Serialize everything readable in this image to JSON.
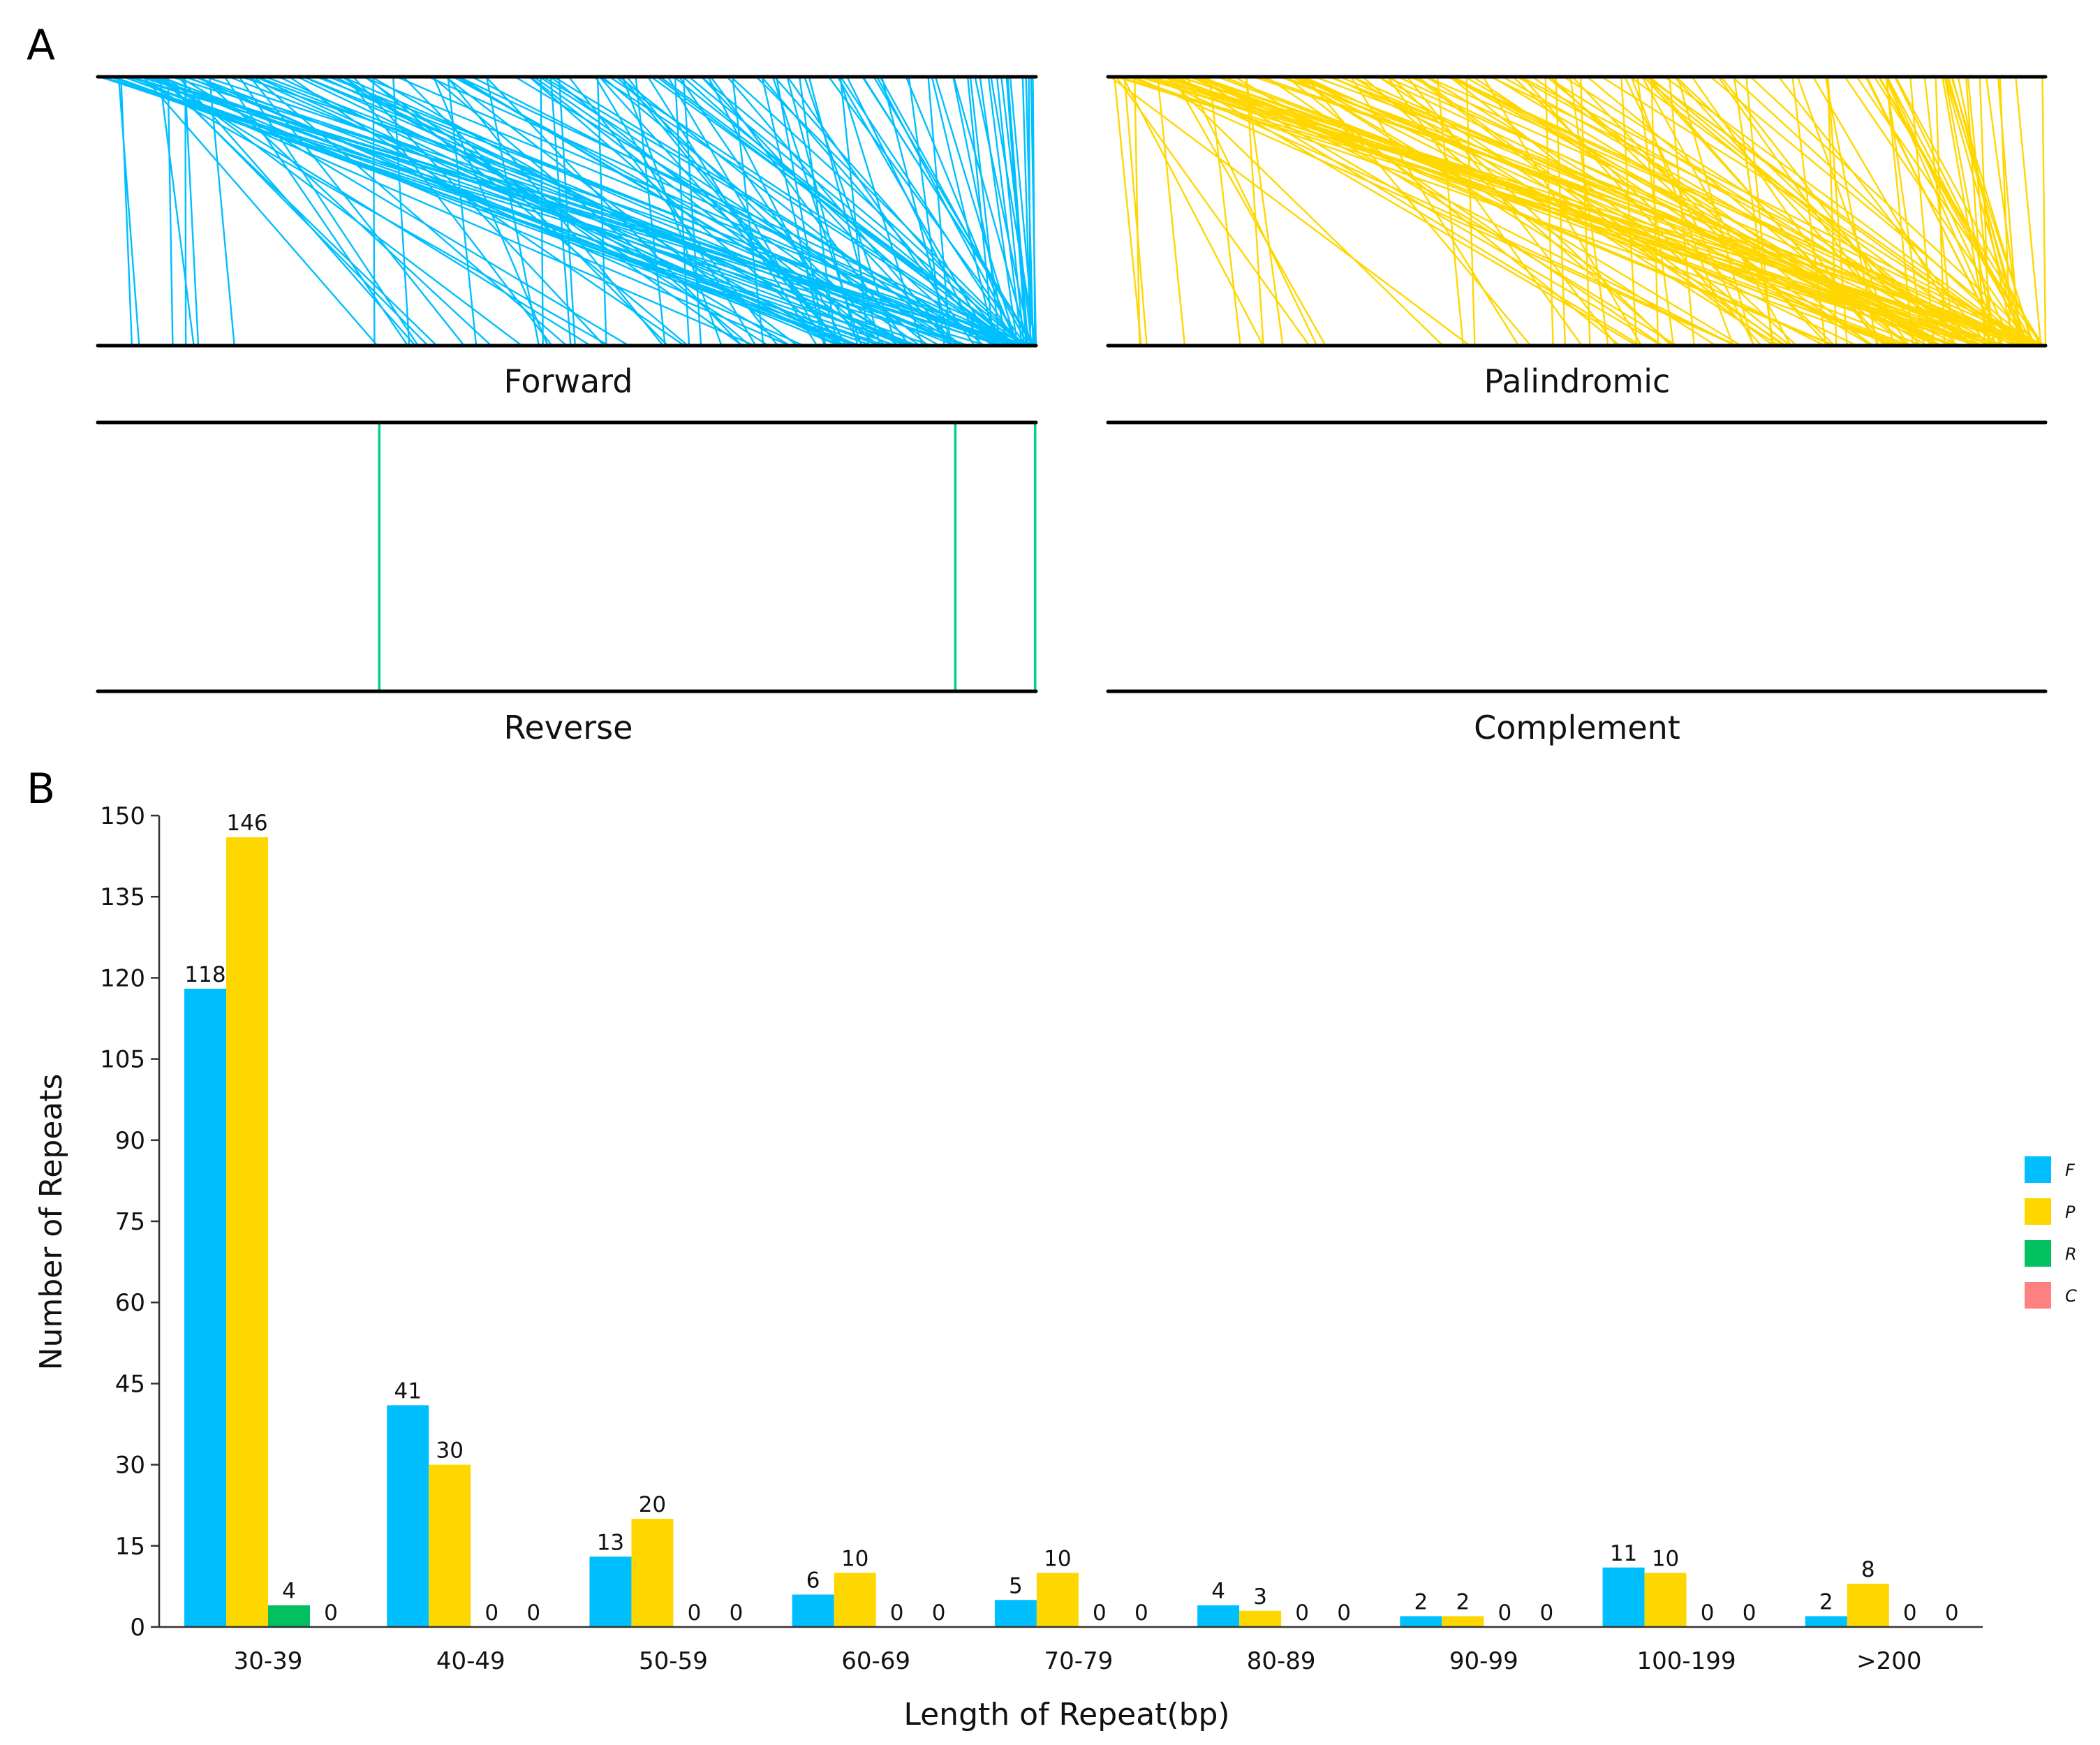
{
  "panels": {
    "a_letter": "A",
    "b_letter": "B",
    "forward": {
      "label": "Forward",
      "color": "#00BFFF"
    },
    "palindromic": {
      "label": "Palindromic",
      "color": "#FFD700"
    },
    "reverse": {
      "label": "Reverse",
      "color": "#00D080",
      "positions": [
        0.3,
        0.914,
        0.999
      ]
    },
    "complement": {
      "label": "Complement",
      "color": "#FF8080"
    }
  },
  "chart_data": {
    "type": "bar",
    "title": "",
    "xlabel": "Length of Repeat(bp)",
    "ylabel": "Number of Repeats",
    "ylim": [
      0,
      150
    ],
    "yticks": [
      0,
      15,
      30,
      45,
      60,
      75,
      90,
      105,
      120,
      135,
      150
    ],
    "categories": [
      "30-39",
      "40-49",
      "50-59",
      "60-69",
      "70-79",
      "80-89",
      "90-99",
      "100-199",
      ">200"
    ],
    "series": [
      {
        "name": "F",
        "color": "#00BFFF",
        "values": [
          118,
          41,
          13,
          6,
          5,
          4,
          2,
          11,
          2
        ]
      },
      {
        "name": "P",
        "color": "#FFD700",
        "values": [
          146,
          30,
          20,
          10,
          10,
          3,
          2,
          10,
          8
        ]
      },
      {
        "name": "R",
        "color": "#00C060",
        "values": [
          4,
          0,
          0,
          0,
          0,
          0,
          0,
          0,
          0
        ]
      },
      {
        "name": "C",
        "color": "#FF8080",
        "values": [
          0,
          0,
          0,
          0,
          0,
          0,
          0,
          0,
          0
        ]
      }
    ],
    "legend": "right"
  }
}
